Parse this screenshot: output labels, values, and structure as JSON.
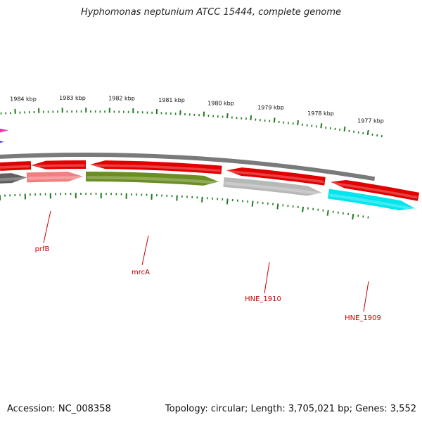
{
  "title": "Hyphomonas neptunium ATCC 15444, complete genome",
  "footer": {
    "accession": "Accession: NC_008358",
    "summary": "Topology: circular; Length: 3,705,021 bp; Genes: 3,552"
  },
  "colors": {
    "backbone": "#7a7a7a",
    "tick_outer": "#1f7a1f",
    "tick_inner": "#1f7a1f",
    "gene_label": "#cc0000",
    "kbp_label": "#111111"
  },
  "kbp_labels": [
    "1984 kbp",
    "1983 kbp",
    "1982 kbp",
    "1981 kbp",
    "1980 kbp",
    "1979 kbp",
    "1978 kbp",
    "1977 kbp"
  ],
  "genes": [
    {
      "name": "prfB",
      "color": "#e00000",
      "strand": "reverse",
      "track": 0
    },
    {
      "name": "",
      "color": "#f08080",
      "strand": "forward",
      "track": 1
    },
    {
      "name": "mrcA",
      "color": "#6b8e23",
      "strand": "forward",
      "track": 1
    },
    {
      "name": "HNE_1910",
      "color": "#b8b8b8",
      "strand": "forward",
      "track": 1
    },
    {
      "name": "HNE_1909",
      "color": "#00e5ee",
      "strand": "forward",
      "track": 1
    }
  ],
  "features": [
    {
      "name": "",
      "color": "#e00000",
      "strand": "reverse"
    },
    {
      "name": "",
      "color": "#e00000",
      "strand": "reverse"
    },
    {
      "name": "",
      "color": "#e00000",
      "strand": "reverse"
    },
    {
      "name": "",
      "color": "#e00000",
      "strand": "reverse"
    },
    {
      "name": "",
      "color": "#606060",
      "strand": "forward"
    },
    {
      "name": "",
      "color": "#e0109a",
      "strand": "forward"
    },
    {
      "name": "",
      "color": "#1010e0",
      "strand": "forward"
    }
  ]
}
